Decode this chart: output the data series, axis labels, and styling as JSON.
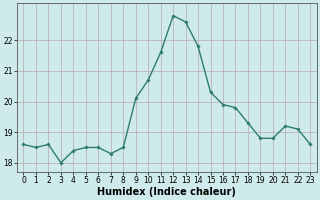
{
  "x": [
    0,
    1,
    2,
    3,
    4,
    5,
    6,
    7,
    8,
    9,
    10,
    11,
    12,
    13,
    14,
    15,
    16,
    17,
    18,
    19,
    20,
    21,
    22,
    23
  ],
  "y": [
    18.6,
    18.5,
    18.6,
    18.0,
    18.4,
    18.5,
    18.5,
    18.3,
    18.5,
    20.1,
    20.7,
    21.6,
    22.8,
    22.6,
    21.8,
    20.3,
    19.9,
    19.8,
    19.3,
    18.8,
    18.8,
    19.2,
    19.1,
    18.6
  ],
  "line_color": "#2e7d6e",
  "marker": "D",
  "marker_size": 1.8,
  "line_width": 1.0,
  "xlabel": "Humidex (Indice chaleur)",
  "xlabel_fontsize": 7,
  "ylim": [
    17.7,
    23.2
  ],
  "xlim": [
    -0.5,
    23.5
  ],
  "yticks": [
    18,
    19,
    20,
    21,
    22
  ],
  "xticks": [
    0,
    1,
    2,
    3,
    4,
    5,
    6,
    7,
    8,
    9,
    10,
    11,
    12,
    13,
    14,
    15,
    16,
    17,
    18,
    19,
    20,
    21,
    22,
    23
  ],
  "tick_fontsize": 5.5,
  "bg_color": "#ceeaea",
  "grid_color": "#b8a8a8",
  "grid_lw": 0.5,
  "spine_color": "#555555"
}
